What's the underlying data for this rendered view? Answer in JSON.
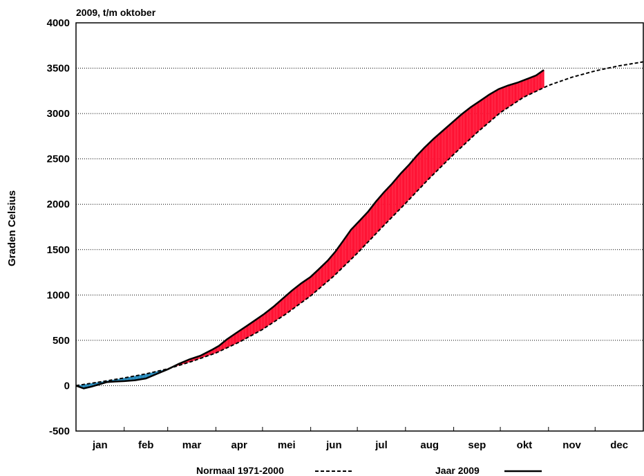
{
  "chart_data": {
    "type": "line",
    "title": "2009, t/m oktober",
    "xlabel": "",
    "ylabel": "Graden Celsius",
    "ylim": [
      -500,
      4000
    ],
    "yticks": [
      -500,
      0,
      500,
      1000,
      1500,
      2000,
      2500,
      3000,
      3500,
      4000
    ],
    "xlim": [
      0,
      365
    ],
    "months": [
      "jan",
      "feb",
      "mar",
      "apr",
      "mei",
      "jun",
      "jul",
      "aug",
      "sep",
      "okt",
      "nov",
      "dec"
    ],
    "month_starts": [
      0,
      31,
      59,
      90,
      120,
      151,
      181,
      212,
      243,
      273,
      304,
      334,
      365
    ],
    "grid": "horizontal dotted",
    "legend": [
      "Normaal 1971-2000",
      "Jaar 2009"
    ],
    "legend_placement": "bottom",
    "series": [
      {
        "name": "Normaal 1971-2000",
        "style": "dashed",
        "x": [
          0,
          15,
          31,
          45,
          59,
          75,
          90,
          105,
          120,
          135,
          151,
          166,
          181,
          196,
          212,
          227,
          243,
          258,
          273,
          288,
          304,
          319,
          334,
          349,
          365
        ],
        "y": [
          0,
          40,
          85,
          130,
          185,
          270,
          360,
          480,
          620,
          790,
          990,
          1210,
          1460,
          1730,
          2010,
          2280,
          2550,
          2790,
          3010,
          3180,
          3310,
          3400,
          3470,
          3525,
          3570
        ]
      },
      {
        "name": "Jaar 2009",
        "style": "solid",
        "x": [
          0,
          5,
          10,
          15,
          20,
          25,
          31,
          38,
          45,
          52,
          59,
          66,
          73,
          80,
          88,
          92,
          97,
          103,
          110,
          116,
          121,
          127,
          133,
          139,
          145,
          151,
          156,
          162,
          167,
          172,
          177,
          182,
          188,
          193,
          198,
          203,
          209,
          214,
          219,
          224,
          230,
          236,
          242,
          248,
          254,
          260,
          266,
          272,
          278,
          284,
          290,
          296,
          301
        ],
        "y": [
          0,
          -30,
          -10,
          15,
          40,
          45,
          50,
          60,
          80,
          130,
          180,
          240,
          290,
          330,
          400,
          440,
          510,
          580,
          660,
          730,
          790,
          870,
          960,
          1050,
          1130,
          1200,
          1280,
          1380,
          1480,
          1600,
          1720,
          1810,
          1920,
          2030,
          2130,
          2220,
          2340,
          2430,
          2530,
          2620,
          2720,
          2810,
          2900,
          2990,
          3070,
          3140,
          3210,
          3270,
          3310,
          3340,
          3380,
          3420,
          3480
        ]
      }
    ],
    "fill_colors": {
      "below_normal": "#2288bb",
      "above_normal": "#ff1133"
    }
  }
}
